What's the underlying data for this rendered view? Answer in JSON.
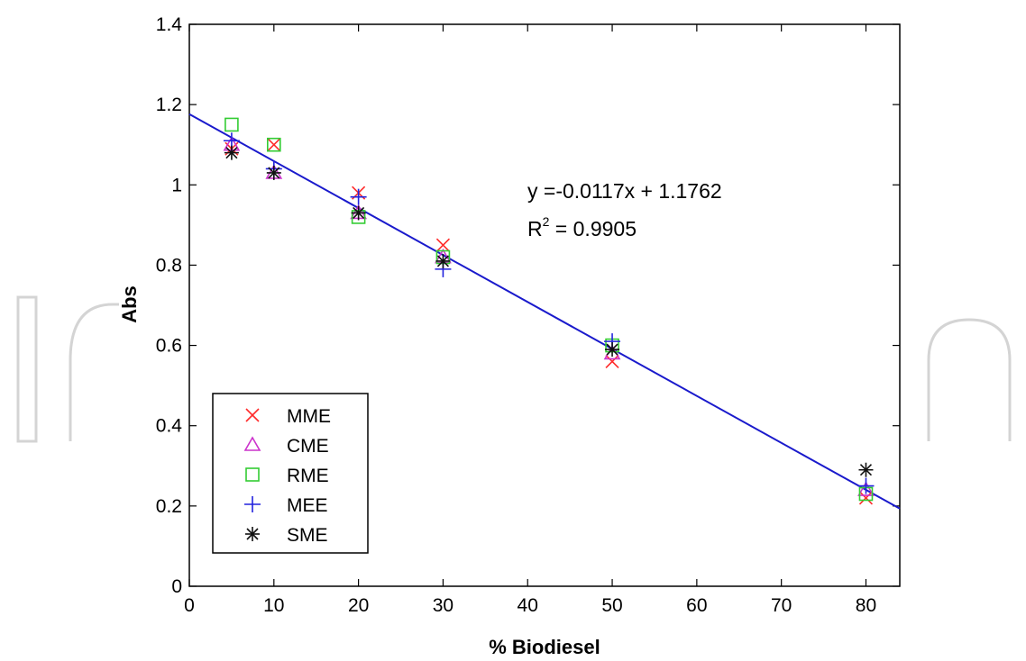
{
  "chart_data": {
    "type": "scatter",
    "xlabel": "% Biodiesel",
    "ylabel": "Abs",
    "xlim": [
      0,
      84
    ],
    "ylim": [
      0,
      1.4
    ],
    "xticks": [
      0,
      10,
      20,
      30,
      40,
      50,
      60,
      70,
      80
    ],
    "yticks": [
      0,
      0.2,
      0.4,
      0.6,
      0.8,
      1,
      1.2,
      1.4
    ],
    "xtick_labels": [
      "0",
      "10",
      "20",
      "30",
      "40",
      "50",
      "60",
      "70",
      "80"
    ],
    "ytick_labels": [
      "0",
      "0.2",
      "0.4",
      "0.6",
      "0.8",
      "1",
      "1.2",
      "1.4"
    ],
    "grid": false,
    "legend_position": "bottom-left",
    "series": [
      {
        "name": "MME",
        "marker": "x",
        "color": "#ff2a2a",
        "x": [
          5,
          10,
          20,
          30,
          50,
          80
        ],
        "y": [
          1.09,
          1.1,
          0.98,
          0.85,
          0.56,
          0.22
        ]
      },
      {
        "name": "CME",
        "marker": "triangle",
        "color": "#cc33cc",
        "x": [
          5,
          10,
          20,
          30,
          50,
          80
        ],
        "y": [
          1.1,
          1.03,
          0.93,
          0.82,
          0.58,
          0.24
        ]
      },
      {
        "name": "RME",
        "marker": "square",
        "color": "#33cc33",
        "x": [
          5,
          10,
          20,
          30,
          50,
          80
        ],
        "y": [
          1.15,
          1.1,
          0.92,
          0.82,
          0.6,
          0.23
        ]
      },
      {
        "name": "MEE",
        "marker": "plus",
        "color": "#2222dd",
        "x": [
          5,
          10,
          20,
          30,
          50,
          80
        ],
        "y": [
          1.11,
          1.04,
          0.97,
          0.79,
          0.61,
          0.25
        ]
      },
      {
        "name": "SME",
        "marker": "asterisk",
        "color": "#111111",
        "x": [
          5,
          10,
          20,
          30,
          50,
          80
        ],
        "y": [
          1.08,
          1.03,
          0.93,
          0.81,
          0.59,
          0.29
        ]
      }
    ],
    "fit_line": {
      "slope": -0.0117,
      "intercept": 1.1762,
      "x_range": [
        0,
        84
      ],
      "color": "#1a1acc"
    },
    "annotations": {
      "equation": "y =-0.0117x + 1.1762",
      "r2_prefix": "R",
      "r2_sup": "2",
      "r2_suffix": " = 0.9905"
    }
  }
}
